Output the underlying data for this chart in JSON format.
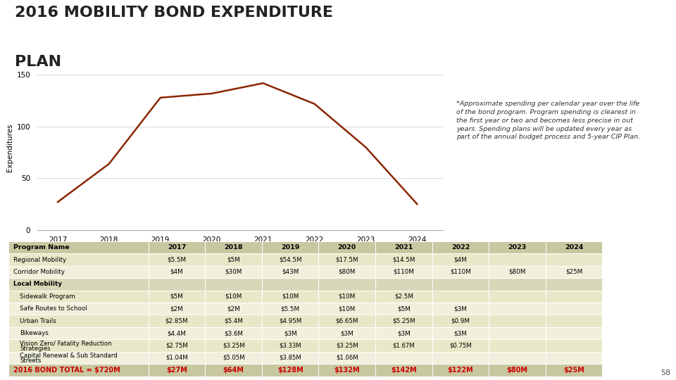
{
  "title_line1": "2016 MOBILITY BOND EXPENDITURE",
  "title_line2": "PLAN",
  "title_fontsize": 16,
  "title_color": "#222222",
  "background_color": "#ffffff",
  "line_years": [
    2017,
    2018,
    2019,
    2020,
    2021,
    2022,
    2023,
    2024
  ],
  "line_values": [
    27,
    64,
    128,
    132,
    142,
    122,
    80,
    25
  ],
  "line_color": "#8B2500",
  "line_label": "2016 Mobility Bond",
  "ylabel": "Expenditures",
  "ylim": [
    0,
    160
  ],
  "yticks": [
    0,
    50,
    100,
    150
  ],
  "annotation_text": "*Approximate spending per calendar year over the life\nof the bond program. Program spending is clearest in\nthe first year or two and becomes less precise in out\nyears. Spending plans will be updated every year as\npart of the annual budget process and 5-year CIP Plan.",
  "annotation_fontsize": 6.8,
  "table_header": [
    "Program Name",
    "2017",
    "2018",
    "2019",
    "2020",
    "2021",
    "2022",
    "2023",
    "2024"
  ],
  "table_rows": [
    [
      "Regional Mobility",
      "$5.5M",
      "$5M",
      "$54.5M",
      "$17.5M",
      "$14.5M",
      "$4M",
      "",
      ""
    ],
    [
      "Corridor Mobility",
      "$4M",
      "$30M",
      "$43M",
      "$80M",
      "$110M",
      "$110M",
      "$80M",
      "$25M"
    ],
    [
      "Local Mobility",
      "",
      "",
      "",
      "",
      "",
      "",
      "",
      ""
    ],
    [
      "Sidewalk Program",
      "$5M",
      "$10M",
      "$10M",
      "$10M",
      "$2.5M",
      "",
      "",
      ""
    ],
    [
      "Safe Routes to School",
      "$2M",
      "$2M",
      "$5.5M",
      "$10M",
      "$5M",
      "$3M",
      "",
      ""
    ],
    [
      "Urban Trails",
      "$2.85M",
      "$5.4M",
      "$4.95M",
      "$6.65M",
      "$5.25M",
      "$0.9M",
      "",
      ""
    ],
    [
      "Bikeways",
      "$4.4M",
      "$3.6M",
      "$3M",
      "$3M",
      "$3M",
      "$3M",
      "",
      ""
    ],
    [
      "Vision Zero/ Fatality Reduction\nStrategies",
      "$2.75M",
      "$3.25M",
      "$3.33M",
      "$3.25M",
      "$1.67M",
      "$0.75M",
      "",
      ""
    ],
    [
      "Capital Renewal & Sub Standard\nStreets",
      "$1.04M",
      "$5.05M",
      "$3.85M",
      "$1.06M",
      "",
      "",
      "",
      ""
    ]
  ],
  "total_row": [
    "2016 BOND TOTAL = $720M",
    "$27M",
    "$64M",
    "$128M",
    "$132M",
    "$142M",
    "$122M",
    "$80M",
    "$25M"
  ],
  "table_header_bg": "#c8c8a0",
  "table_row_bg_odd": "#e8e8c8",
  "table_row_bg_even": "#f0f0dc",
  "table_local_bg": "#d8d8b8",
  "table_total_bg": "#c8c8a0",
  "table_total_color": "#cc0000",
  "table_header_color": "#000000",
  "table_text_color": "#000000",
  "col_widths": [
    0.215,
    0.087,
    0.087,
    0.087,
    0.087,
    0.087,
    0.087,
    0.087,
    0.087
  ],
  "page_number": "58"
}
